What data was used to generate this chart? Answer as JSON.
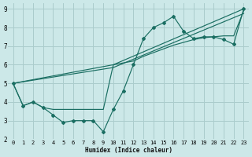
{
  "xlabel": "Humidex (Indice chaleur)",
  "bg_color": "#cce8e8",
  "grid_color": "#aacccc",
  "line_color": "#1a6e62",
  "xlim": [
    -0.5,
    23.5
  ],
  "ylim": [
    2.0,
    9.3
  ],
  "yticks": [
    2,
    3,
    4,
    5,
    6,
    7,
    8,
    9
  ],
  "xticks": [
    0,
    1,
    2,
    3,
    4,
    5,
    6,
    7,
    8,
    9,
    10,
    11,
    12,
    13,
    14,
    15,
    16,
    17,
    18,
    19,
    20,
    21,
    22,
    23
  ],
  "line_main_x": [
    0,
    1,
    2,
    3,
    4,
    5,
    6,
    7,
    8,
    9,
    10,
    11,
    12,
    13,
    14,
    15,
    16,
    17,
    18,
    19,
    20,
    21,
    22,
    23
  ],
  "line_main_y": [
    5.0,
    3.8,
    4.0,
    3.7,
    3.3,
    2.9,
    3.0,
    3.0,
    3.0,
    2.4,
    3.6,
    4.6,
    6.0,
    7.4,
    8.0,
    8.25,
    8.6,
    7.8,
    7.4,
    7.5,
    7.5,
    7.35,
    7.1,
    9.0
  ],
  "line_smooth_x": [
    0,
    1,
    2,
    3,
    4,
    5,
    6,
    7,
    8,
    9,
    10,
    11,
    12,
    13,
    14,
    15,
    16,
    17,
    18,
    19,
    20,
    21,
    22,
    23
  ],
  "line_smooth_y": [
    5.0,
    3.8,
    4.0,
    3.7,
    3.6,
    3.6,
    3.6,
    3.6,
    3.6,
    3.6,
    6.0,
    6.1,
    6.2,
    6.45,
    6.65,
    6.85,
    7.05,
    7.2,
    7.35,
    7.45,
    7.5,
    7.55,
    7.55,
    8.9
  ],
  "line_trend1_x": [
    0,
    10,
    23
  ],
  "line_trend1_y": [
    5.0,
    6.0,
    9.0
  ],
  "line_trend2_x": [
    0,
    10,
    23
  ],
  "line_trend2_y": [
    5.0,
    5.85,
    8.75
  ]
}
